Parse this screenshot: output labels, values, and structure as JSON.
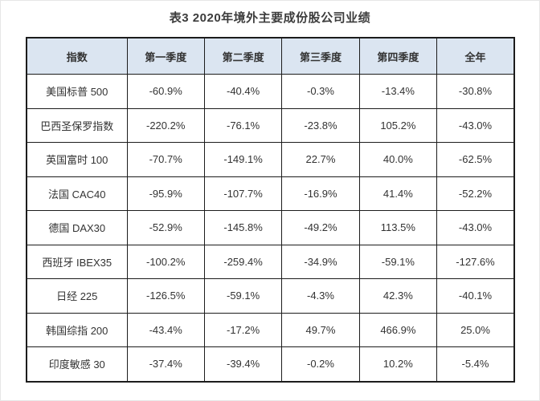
{
  "page": {
    "title": "表3 2020年境外主要成份股公司业绩"
  },
  "chart_data": {
    "type": "table",
    "title": "表3 2020年境外主要成份股公司业绩",
    "columns": [
      "指数",
      "第一季度",
      "第二季度",
      "第三季度",
      "第四季度",
      "全年"
    ],
    "rows": [
      [
        "美国标普 500",
        "-60.9%",
        "-40.4%",
        "-0.3%",
        "-13.4%",
        "-30.8%"
      ],
      [
        "巴西圣保罗指数",
        "-220.2%",
        "-76.1%",
        "-23.8%",
        "105.2%",
        "-43.0%"
      ],
      [
        "英国富时 100",
        "-70.7%",
        "-149.1%",
        "22.7%",
        "40.0%",
        "-62.5%"
      ],
      [
        "法国 CAC40",
        "-95.9%",
        "-107.7%",
        "-16.9%",
        "41.4%",
        "-52.2%"
      ],
      [
        "德国 DAX30",
        "-52.9%",
        "-145.8%",
        "-49.2%",
        "113.5%",
        "-43.0%"
      ],
      [
        "西班牙 IBEX35",
        "-100.2%",
        "-259.4%",
        "-34.9%",
        "-59.1%",
        "-127.6%"
      ],
      [
        "日经 225",
        "-126.5%",
        "-59.1%",
        "-4.3%",
        "42.3%",
        "-40.1%"
      ],
      [
        "韩国综指 200",
        "-43.4%",
        "-17.2%",
        "49.7%",
        "466.9%",
        "25.0%"
      ],
      [
        "印度敏感 30",
        "-37.4%",
        "-39.4%",
        "-0.2%",
        "10.2%",
        "-5.4%"
      ]
    ],
    "layout": {
      "legend": "none",
      "grid": "full-borders",
      "header_position": "top"
    },
    "colors": {
      "header_bg": "#dbe5f1",
      "border": "#1c1c1c",
      "text": "#333333",
      "page_bg": "#ffffff"
    }
  }
}
